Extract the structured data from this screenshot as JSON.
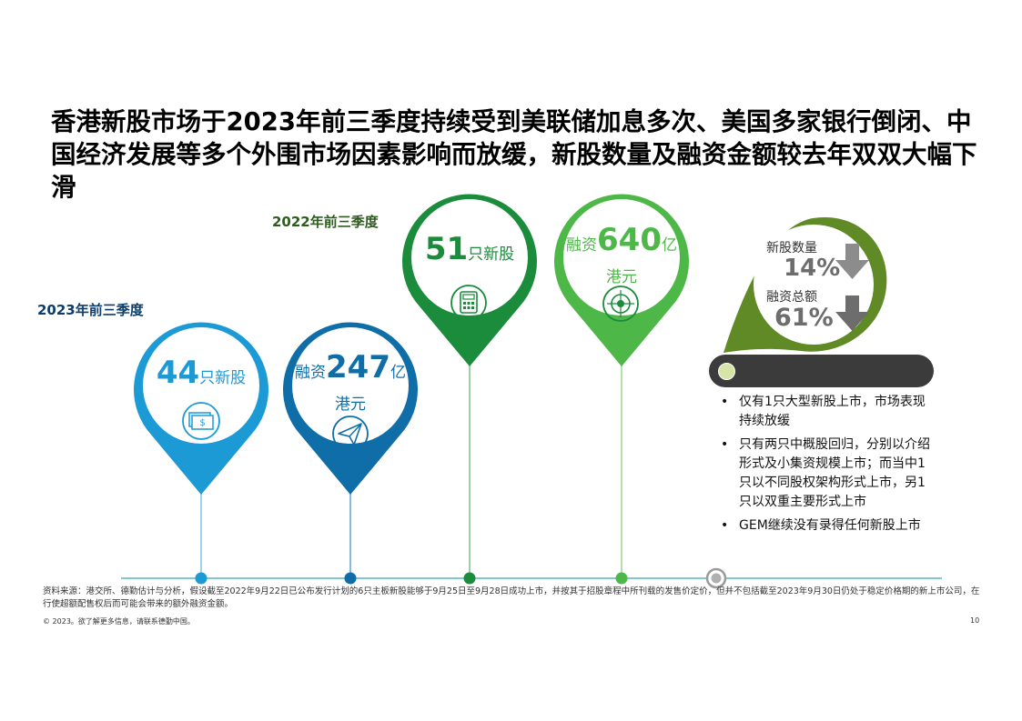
{
  "title": "香港新股市场于2023年前三季度持续受到美联储加息多次、美国多家银行倒闭、中国经济发展等多个外围市场因素影响而放缓，新股数量及融资金额较去年双双大幅下滑",
  "periods": {
    "p2023": "2023年前三季度",
    "p2022": "2022年前三季度"
  },
  "pins": [
    {
      "prefix": "",
      "value": "44",
      "suffix": "只新股",
      "line2": "",
      "icon": "money-icon",
      "color": "#1b9ad6"
    },
    {
      "prefix": "融资",
      "value": "247",
      "suffix": "亿",
      "line2": "港元",
      "icon": "paper-plane-icon",
      "color": "#0f6ea8"
    },
    {
      "prefix": "",
      "value": "51",
      "suffix": "只新股",
      "line2": "",
      "icon": "calculator-icon",
      "color": "#1b8b3c"
    },
    {
      "prefix": "融资",
      "value": "640",
      "suffix": "亿",
      "line2": "港元",
      "icon": "target-icon",
      "color": "#4db848"
    }
  ],
  "change": {
    "count_label": "新股数量",
    "count_value": "14%",
    "amount_label": "融资总额",
    "amount_value": "61%",
    "accent": "#5f8a26"
  },
  "bullets": [
    "仅有1只大型新股上市，市场表现持续放缓",
    "只有两只中概股回归，分别以介绍形式及小集资规模上市；而当中1只以不同股权架构形式上市，另1只以双重主要形式上市",
    "GEM继续没有录得任何新股上市"
  ],
  "footnote": "资料来源：港交所、德勤估计与分析，假设截至2022年9月22日已公布发行计划的6只主板新股能够于9月25日至9月28日成功上市，并按其于招股章程中所刊载的发售价定价，但并不包括截至2023年9月30日仍处于稳定价格期的新上市公司，在行使超额配售权后而可能会带来的额外融资金额。",
  "copyright": "© 2023。欲了解更多信息，请联系德勤中国。",
  "page_number": "10"
}
